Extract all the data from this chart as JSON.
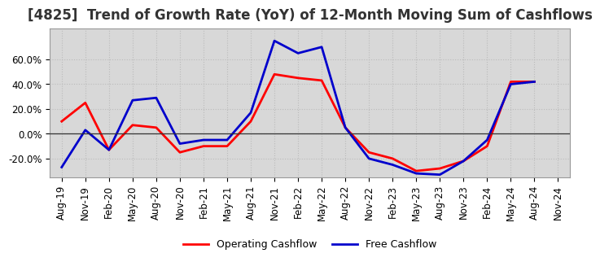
{
  "title": "[4825]  Trend of Growth Rate (YoY) of 12-Month Moving Sum of Cashflows",
  "xlabel_dates": [
    "Aug-19",
    "Nov-19",
    "Feb-20",
    "May-20",
    "Aug-20",
    "Nov-20",
    "Feb-21",
    "May-21",
    "Aug-21",
    "Nov-21",
    "Feb-22",
    "May-22",
    "Aug-22",
    "Nov-22",
    "Feb-23",
    "May-23",
    "Aug-23",
    "Nov-23",
    "Feb-24",
    "May-24",
    "Aug-24",
    "Nov-24"
  ],
  "operating_cf": [
    10,
    25,
    -13,
    7,
    5,
    -15,
    -10,
    -10,
    10,
    48,
    45,
    43,
    5,
    -15,
    -20,
    -30,
    -28,
    -22,
    -10,
    42,
    42,
    null
  ],
  "free_cf": [
    -27,
    3,
    -13,
    27,
    29,
    -8,
    -5,
    -5,
    17,
    75,
    65,
    70,
    5,
    -20,
    -25,
    -32,
    -33,
    -22,
    -5,
    40,
    42,
    null
  ],
  "operating_color": "#ff0000",
  "free_color": "#0000cc",
  "ylim": [
    -35,
    85
  ],
  "yticks": [
    -20,
    0,
    20,
    40,
    60
  ],
  "background_color": "#ffffff",
  "plot_bg_color": "#d8d8d8",
  "grid_color": "#bbbbbb",
  "title_fontsize": 12,
  "tick_fontsize": 8.5,
  "legend_labels": [
    "Operating Cashflow",
    "Free Cashflow"
  ]
}
